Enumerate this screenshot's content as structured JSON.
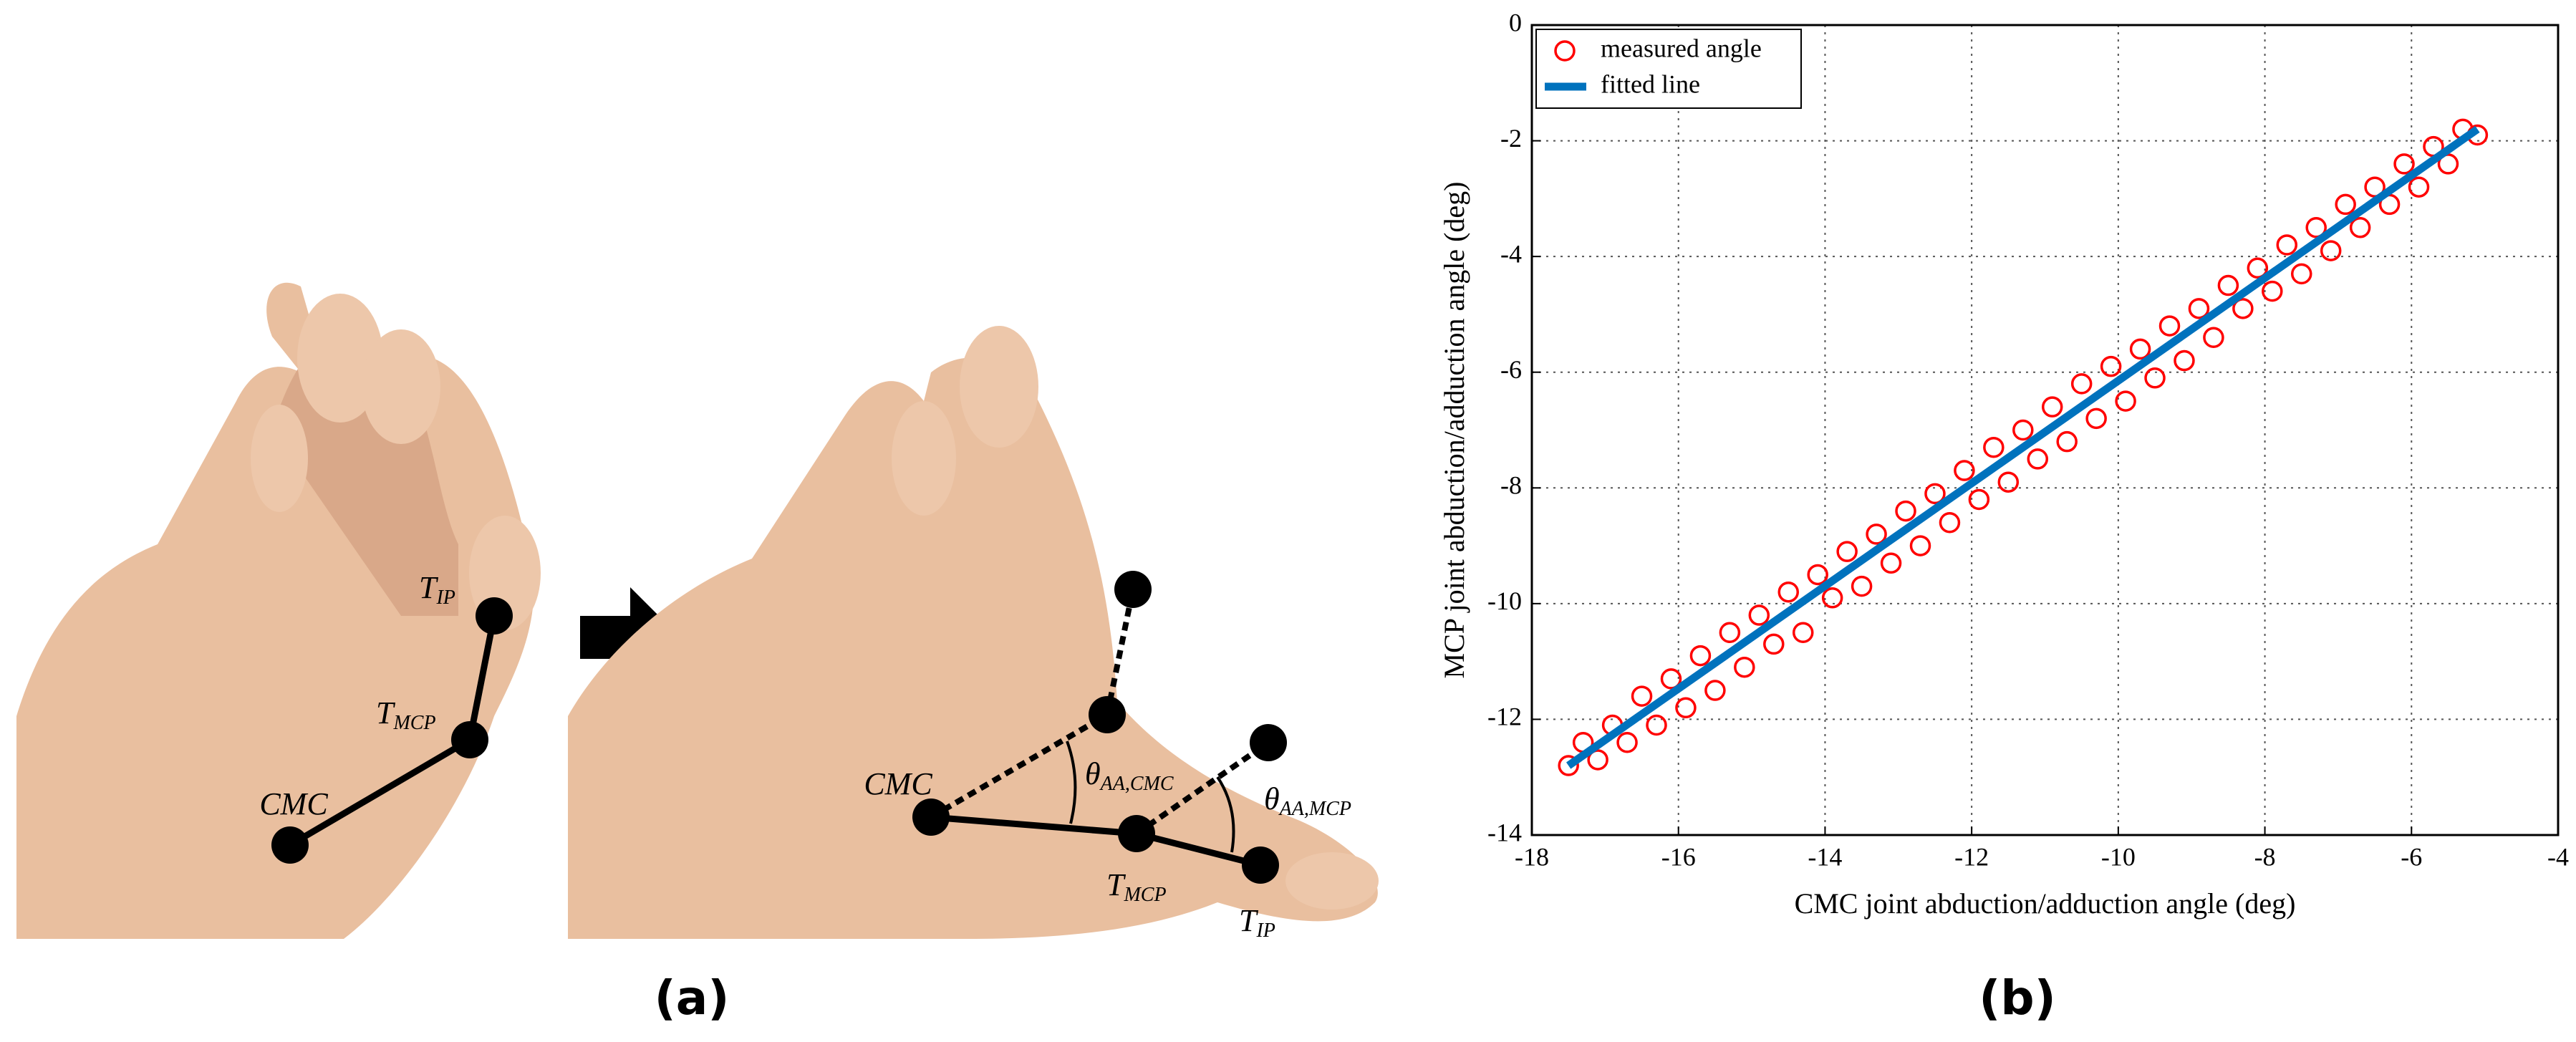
{
  "panel_a": {
    "caption": "(a)",
    "left_labels": {
      "cmc": "CMC",
      "t_mcp": {
        "main": "T",
        "sub": "MCP"
      },
      "t_ip": {
        "main": "T",
        "sub": "IP"
      }
    },
    "right_labels": {
      "cmc": "CMC",
      "theta_cmc": {
        "main": "θ",
        "sub": "AA,CMC"
      },
      "theta_mcp": {
        "main": "θ",
        "sub": "AA,MCP"
      },
      "t_mcp": {
        "main": "T",
        "sub": "MCP"
      },
      "t_ip": {
        "main": "T",
        "sub": "IP"
      }
    }
  },
  "panel_b": {
    "caption": "(b)"
  },
  "chart_data": {
    "type": "scatter",
    "x_label": "CMC joint abduction/adduction angle (deg)",
    "y_label": "MCP joint abduction/adduction angle (deg)",
    "xlim": [
      -18,
      -4
    ],
    "ylim": [
      -14,
      0
    ],
    "xticks": [
      -18,
      -16,
      -14,
      -12,
      -10,
      -8,
      -6,
      -4
    ],
    "yticks": [
      -14,
      -12,
      -10,
      -8,
      -6,
      -4,
      -2,
      0
    ],
    "grid": true,
    "legend": "top-left",
    "series": [
      {
        "name": "measured angle",
        "color": "#ff0000",
        "kind": "marker",
        "x": [
          -17.5,
          -17.3,
          -17.1,
          -16.9,
          -16.7,
          -16.5,
          -16.3,
          -16.1,
          -15.9,
          -15.7,
          -15.5,
          -15.3,
          -15.1,
          -14.9,
          -14.7,
          -14.5,
          -14.3,
          -14.1,
          -13.9,
          -13.7,
          -13.5,
          -13.3,
          -13.1,
          -12.9,
          -12.7,
          -12.5,
          -12.3,
          -12.1,
          -11.9,
          -11.7,
          -11.5,
          -11.3,
          -11.1,
          -10.9,
          -10.7,
          -10.5,
          -10.3,
          -10.1,
          -9.9,
          -9.7,
          -9.5,
          -9.3,
          -9.1,
          -8.9,
          -8.7,
          -8.5,
          -8.3,
          -8.1,
          -7.9,
          -7.7,
          -7.5,
          -7.3,
          -7.1,
          -6.9,
          -6.7,
          -6.5,
          -6.3,
          -6.1,
          -5.9,
          -5.7,
          -5.5,
          -5.3,
          -5.1
        ],
        "values": [
          -12.8,
          -12.4,
          -12.7,
          -12.1,
          -12.4,
          -11.6,
          -12.1,
          -11.3,
          -11.8,
          -10.9,
          -11.5,
          -10.5,
          -11.1,
          -10.2,
          -10.7,
          -9.8,
          -10.5,
          -9.5,
          -9.9,
          -9.1,
          -9.7,
          -8.8,
          -9.3,
          -8.4,
          -9.0,
          -8.1,
          -8.6,
          -7.7,
          -8.2,
          -7.3,
          -7.9,
          -7.0,
          -7.5,
          -6.6,
          -7.2,
          -6.2,
          -6.8,
          -5.9,
          -6.5,
          -5.6,
          -6.1,
          -5.2,
          -5.8,
          -4.9,
          -5.4,
          -4.5,
          -4.9,
          -4.2,
          -4.6,
          -3.8,
          -4.3,
          -3.5,
          -3.9,
          -3.1,
          -3.5,
          -2.8,
          -3.1,
          -2.4,
          -2.8,
          -2.1,
          -2.4,
          -1.8,
          -1.9
        ]
      },
      {
        "name": "fitted line",
        "color": "#0072bd",
        "kind": "line",
        "x": [
          -17.5,
          -5.1
        ],
        "values": [
          -12.8,
          -1.8
        ]
      }
    ]
  }
}
